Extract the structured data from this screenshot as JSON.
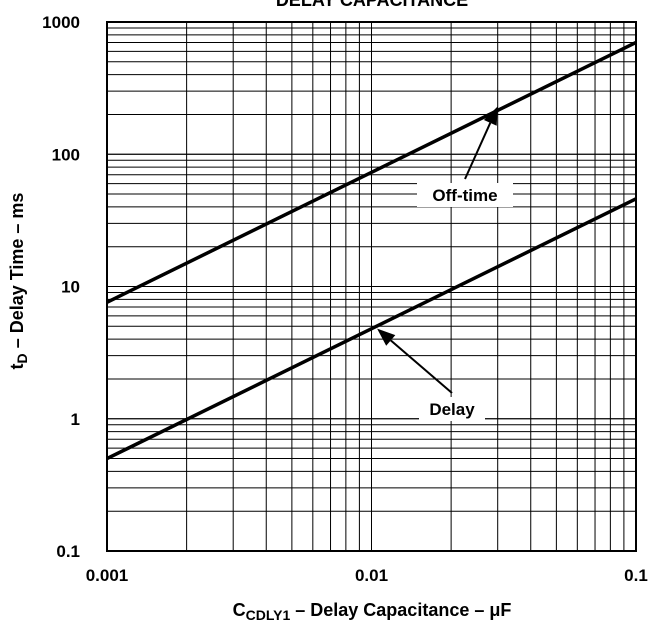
{
  "chart_data": {
    "type": "line",
    "title": "DELAY CAPACITANCE",
    "xlabel": {
      "symbol": "C",
      "subscript": "CDLY1",
      "text": " – Delay Capacitance – μF"
    },
    "ylabel": {
      "symbol": "t",
      "subscript": "D",
      "text": " – Delay Time – ms"
    },
    "xscale": "log",
    "yscale": "log",
    "xlim": [
      0.001,
      0.1
    ],
    "ylim": [
      0.1,
      1000
    ],
    "xticks": [
      0.001,
      0.01,
      0.1
    ],
    "xtick_labels": [
      "0.001",
      "0.01",
      "0.1"
    ],
    "yticks": [
      0.1,
      1,
      10,
      100,
      1000
    ],
    "ytick_labels": [
      "0.1",
      "1",
      "10",
      "100",
      "1000"
    ],
    "grid": true,
    "series": [
      {
        "name": "Off-time",
        "x": [
          0.001,
          0.1
        ],
        "y": [
          7.6,
          700
        ]
      },
      {
        "name": "Delay",
        "x": [
          0.001,
          0.1
        ],
        "y": [
          0.5,
          46
        ]
      }
    ],
    "annotations": [
      {
        "text": "Off-time",
        "point_to": [
          0.03,
          230
        ]
      },
      {
        "text": "Delay",
        "point_to": [
          0.0105,
          4.8
        ]
      }
    ]
  }
}
